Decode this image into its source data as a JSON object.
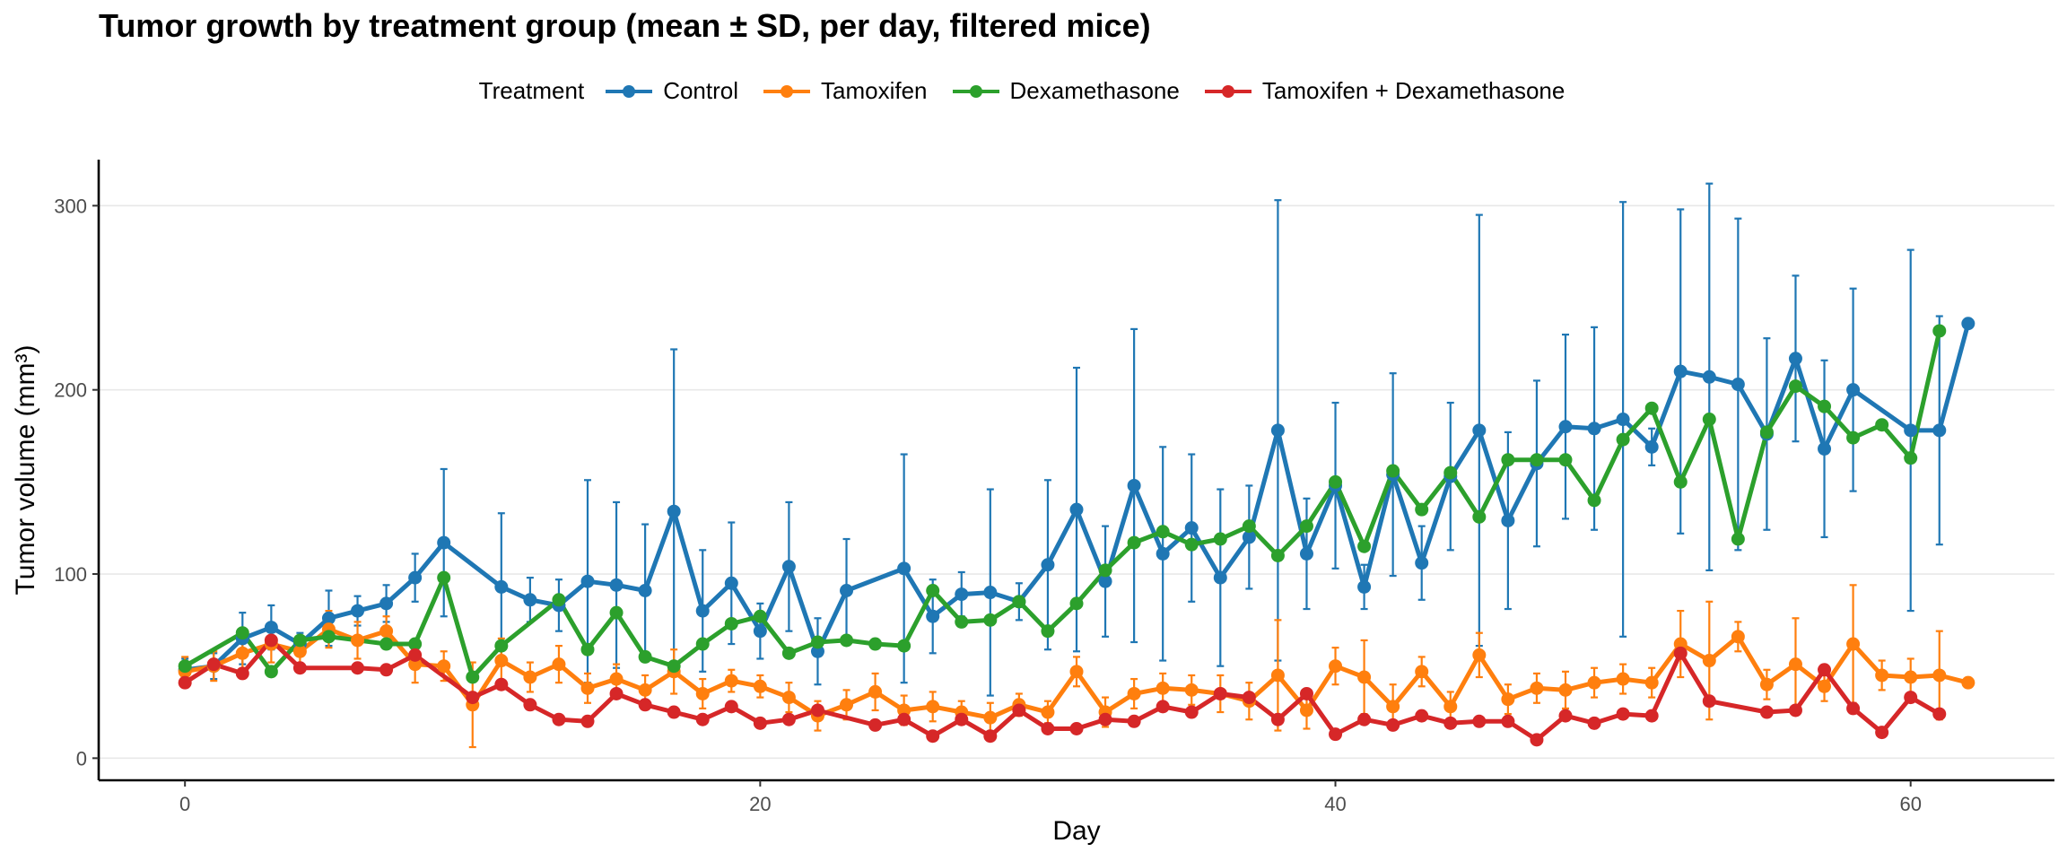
{
  "chart_data": {
    "type": "line",
    "title": "Tumor growth by treatment group (mean ± SD, per day, filtered mice)",
    "xlabel": "Day",
    "ylabel": "Tumor volume (mm³)",
    "xlim": [
      -3,
      65
    ],
    "ylim": [
      -12,
      325
    ],
    "xticks": [
      0,
      20,
      40,
      60
    ],
    "yticks": [
      0,
      100,
      200,
      300
    ],
    "grid": "horizontal major",
    "legend": {
      "title": "Treatment",
      "placement": "top-center"
    },
    "series": [
      {
        "name": "Control",
        "color": "#1f77b4",
        "x": [
          0,
          1,
          2,
          3,
          4,
          5,
          6,
          7,
          8,
          9,
          11,
          12,
          13,
          14,
          15,
          16,
          17,
          18,
          19,
          20,
          21,
          22,
          23,
          25,
          26,
          27,
          28,
          29,
          30,
          31,
          32,
          33,
          34,
          35,
          36,
          37,
          38,
          39,
          40,
          41,
          42,
          43,
          44,
          45,
          46,
          47,
          48,
          49,
          50,
          51,
          52,
          53,
          54,
          55,
          56,
          57,
          58,
          60,
          61,
          62
        ],
        "y": [
          48,
          50,
          65,
          71,
          62,
          76,
          80,
          84,
          98,
          117,
          93,
          86,
          83,
          96,
          94,
          91,
          134,
          80,
          95,
          69,
          104,
          58,
          91,
          103,
          77,
          89,
          90,
          85,
          105,
          135,
          96,
          148,
          111,
          125,
          98,
          120,
          178,
          111,
          148,
          93,
          154,
          106,
          153,
          178,
          129,
          160,
          180,
          179,
          184,
          169,
          210,
          207,
          203,
          176,
          217,
          168,
          200,
          178,
          178,
          236
        ],
        "sd": [
          6,
          7,
          14,
          12,
          6,
          15,
          8,
          10,
          13,
          40,
          40,
          12,
          14,
          55,
          45,
          36,
          88,
          33,
          33,
          15,
          35,
          18,
          28,
          62,
          20,
          12,
          56,
          10,
          46,
          77,
          30,
          85,
          58,
          40,
          48,
          28,
          125,
          30,
          45,
          12,
          55,
          20,
          40,
          117,
          48,
          45,
          50,
          55,
          118,
          10,
          88,
          105,
          90,
          52,
          45,
          48,
          55,
          98,
          62,
          2
        ]
      },
      {
        "name": "Tamoxifen",
        "color": "#ff7f0e",
        "x": [
          0,
          1,
          2,
          3,
          4,
          5,
          6,
          7,
          8,
          9,
          10,
          11,
          12,
          13,
          14,
          15,
          16,
          17,
          18,
          19,
          20,
          21,
          22,
          23,
          24,
          25,
          26,
          27,
          28,
          29,
          30,
          31,
          32,
          33,
          34,
          35,
          36,
          37,
          38,
          39,
          40,
          41,
          42,
          43,
          44,
          45,
          46,
          47,
          48,
          49,
          50,
          51,
          52,
          53,
          54,
          55,
          56,
          57,
          58,
          59,
          60,
          61,
          62
        ],
        "y": [
          47,
          50,
          57,
          62,
          58,
          70,
          64,
          69,
          51,
          50,
          29,
          53,
          44,
          51,
          38,
          43,
          37,
          47,
          35,
          42,
          39,
          33,
          23,
          29,
          36,
          26,
          28,
          25,
          22,
          29,
          25,
          47,
          25,
          35,
          38,
          37,
          35,
          31,
          45,
          26,
          50,
          44,
          28,
          47,
          28,
          56,
          32,
          38,
          37,
          41,
          43,
          41,
          62,
          53,
          66,
          40,
          51,
          39,
          62,
          45,
          44,
          45,
          41
        ],
        "sd": [
          8,
          8,
          10,
          10,
          8,
          10,
          10,
          8,
          10,
          8,
          23,
          12,
          8,
          10,
          8,
          8,
          8,
          12,
          8,
          6,
          6,
          8,
          8,
          8,
          10,
          8,
          8,
          6,
          8,
          6,
          6,
          8,
          8,
          8,
          8,
          8,
          10,
          10,
          30,
          10,
          10,
          20,
          12,
          8,
          8,
          12,
          8,
          8,
          10,
          8,
          8,
          8,
          18,
          32,
          8,
          8,
          25,
          8,
          32,
          8,
          10,
          24,
          2
        ]
      },
      {
        "name": "Dexamethasone",
        "color": "#2ca02c",
        "x": [
          0,
          2,
          3,
          4,
          5,
          7,
          8,
          9,
          10,
          11,
          13,
          14,
          15,
          16,
          17,
          18,
          19,
          20,
          21,
          22,
          23,
          24,
          25,
          26,
          27,
          28,
          29,
          30,
          31,
          32,
          33,
          34,
          35,
          36,
          37,
          38,
          39,
          40,
          41,
          42,
          43,
          44,
          45,
          46,
          47,
          48,
          49,
          50,
          51,
          52,
          53,
          54,
          55,
          56,
          57,
          58,
          59,
          60,
          61
        ],
        "y": [
          50,
          68,
          47,
          64,
          66,
          62,
          62,
          98,
          44,
          61,
          86,
          59,
          79,
          55,
          50,
          62,
          73,
          77,
          57,
          63,
          64,
          62,
          61,
          91,
          74,
          75,
          85,
          69,
          84,
          102,
          117,
          123,
          116,
          119,
          126,
          110,
          126,
          150,
          115,
          156,
          135,
          155,
          131,
          162,
          162,
          162,
          140,
          173,
          190,
          150,
          184,
          119,
          177,
          202,
          191,
          174,
          181,
          163,
          232
        ]
      },
      {
        "name": "Tamoxifen + Dexamethasone",
        "color": "#d62728",
        "x": [
          0,
          1,
          2,
          3,
          4,
          6,
          7,
          8,
          10,
          11,
          12,
          13,
          14,
          15,
          16,
          17,
          18,
          19,
          20,
          21,
          22,
          24,
          25,
          26,
          27,
          28,
          29,
          30,
          31,
          32,
          33,
          34,
          35,
          36,
          37,
          38,
          39,
          40,
          41,
          42,
          43,
          44,
          45,
          46,
          47,
          48,
          49,
          50,
          51,
          52,
          53,
          55,
          56,
          57,
          58,
          59,
          60,
          61
        ],
        "y": [
          41,
          51,
          46,
          64,
          49,
          49,
          48,
          56,
          33,
          40,
          29,
          21,
          20,
          35,
          29,
          25,
          21,
          28,
          19,
          21,
          26,
          18,
          21,
          12,
          21,
          12,
          26,
          16,
          16,
          21,
          20,
          28,
          25,
          35,
          33,
          21,
          35,
          13,
          21,
          18,
          23,
          19,
          20,
          20,
          10,
          23,
          19,
          24,
          23,
          57,
          31,
          25,
          26,
          48,
          27,
          14,
          33,
          24
        ]
      }
    ]
  }
}
